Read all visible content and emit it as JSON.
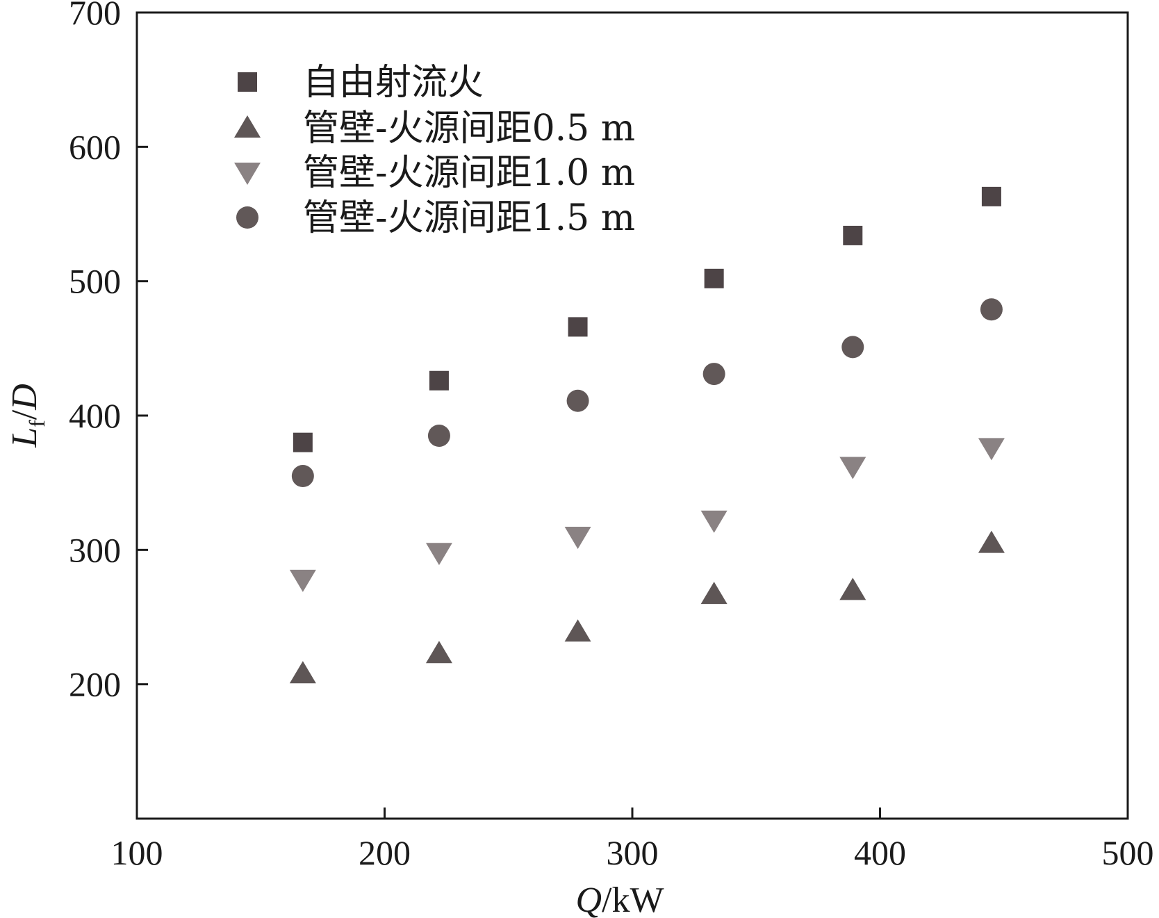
{
  "chart_data": {
    "type": "scatter",
    "title": "",
    "xlabel": {
      "symbol": "Q",
      "unit": "/kW"
    },
    "ylabel": {
      "symbol": "L",
      "subscript": "f",
      "suffix": "/",
      "symbol2": "D"
    },
    "xlim": [
      100,
      500
    ],
    "ylim": [
      100,
      700
    ],
    "x_ticks": [
      100,
      200,
      300,
      400,
      500
    ],
    "x_tick_labels": [
      "100",
      "200",
      "300",
      "400",
      "500"
    ],
    "y_ticks": [
      200,
      300,
      400,
      500,
      600,
      700
    ],
    "y_tick_labels": [
      "200",
      "300",
      "400",
      "500",
      "600",
      "700"
    ],
    "grid": false,
    "legend_position": "top-left",
    "x": [
      167,
      222,
      278,
      333,
      389,
      445
    ],
    "series": [
      {
        "name": "自由射流火",
        "marker": "square",
        "color": "#4d4446",
        "values": [
          380,
          426,
          466,
          502,
          534,
          563
        ]
      },
      {
        "name": "管壁-火源间距0.5 m",
        "marker": "triangle-up",
        "color": "#5e5656",
        "values": [
          208,
          223,
          239,
          267,
          270,
          305
        ]
      },
      {
        "name": "管壁-火源间距1.0 m",
        "marker": "triangle-down",
        "color": "#8a8283",
        "values": [
          278,
          298,
          310,
          322,
          362,
          376
        ]
      },
      {
        "name": "管壁-火源间距1.5 m",
        "marker": "circle",
        "color": "#615858",
        "values": [
          355,
          385,
          411,
          431,
          451,
          479
        ]
      }
    ]
  }
}
